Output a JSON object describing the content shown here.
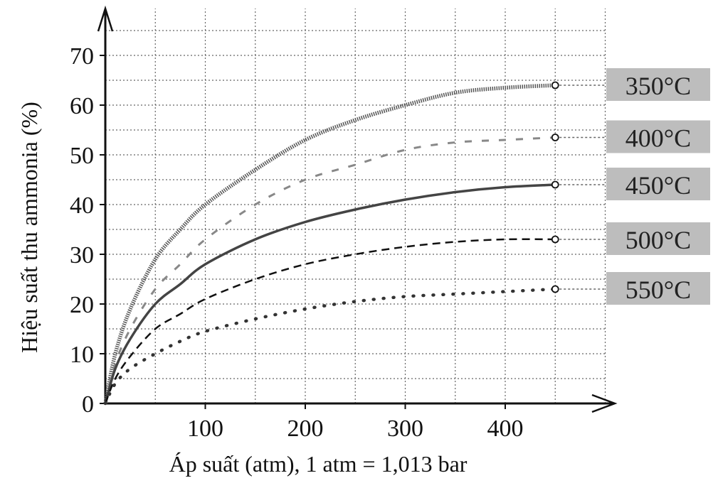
{
  "chart_data": {
    "type": "line",
    "xlabel": "Áp suất (atm), 1 atm = 1,013 bar",
    "ylabel": "Hiệu suất thu ammonia (%)",
    "xlim": [
      0,
      500
    ],
    "ylim": [
      0,
      78
    ],
    "xticks": [
      100,
      200,
      300,
      400
    ],
    "yticks": [
      0,
      10,
      20,
      30,
      40,
      50,
      60,
      70
    ],
    "grid": true,
    "series": [
      {
        "name": "350°C",
        "style": "dense-dots",
        "x": [
          0,
          10,
          25,
          50,
          75,
          100,
          150,
          200,
          250,
          300,
          350,
          400,
          450
        ],
        "y": [
          0,
          10,
          19,
          29,
          35,
          40,
          47,
          53,
          57,
          60,
          62.5,
          63.5,
          64
        ]
      },
      {
        "name": "400°C",
        "style": "dash-dot",
        "x": [
          0,
          10,
          25,
          50,
          75,
          100,
          150,
          200,
          250,
          300,
          350,
          400,
          450
        ],
        "y": [
          0,
          8,
          15,
          23,
          28,
          33,
          40,
          45,
          48,
          51,
          52.5,
          53,
          53.5
        ]
      },
      {
        "name": "450°C",
        "style": "solid",
        "x": [
          0,
          10,
          25,
          50,
          75,
          100,
          150,
          200,
          250,
          300,
          350,
          400,
          450
        ],
        "y": [
          0,
          7,
          13,
          20,
          24,
          28,
          33,
          36.5,
          39,
          41,
          42.5,
          43.5,
          44
        ]
      },
      {
        "name": "500°C",
        "style": "dashed",
        "x": [
          0,
          10,
          25,
          50,
          75,
          100,
          150,
          200,
          250,
          300,
          350,
          400,
          450
        ],
        "y": [
          0,
          5,
          9.5,
          15,
          18,
          21,
          25,
          28,
          30,
          31.5,
          32.5,
          33,
          33
        ]
      },
      {
        "name": "550°C",
        "style": "sparse-dots",
        "x": [
          0,
          10,
          25,
          50,
          75,
          100,
          150,
          200,
          250,
          300,
          350,
          400,
          450
        ],
        "y": [
          0,
          4,
          7,
          10,
          12.5,
          14.5,
          17,
          19,
          20.5,
          21.5,
          22,
          22.5,
          23
        ]
      }
    ]
  }
}
